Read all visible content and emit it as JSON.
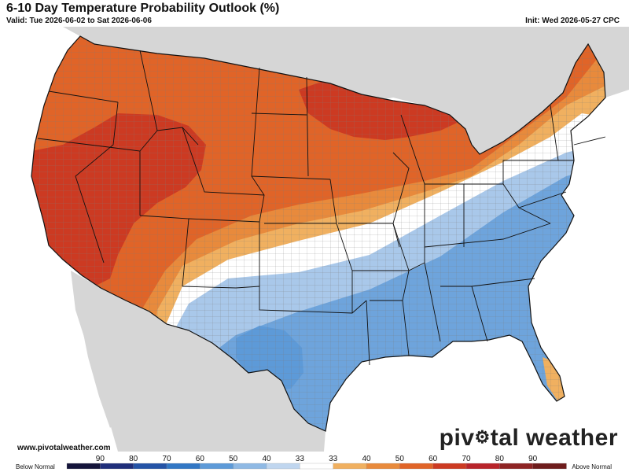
{
  "header": {
    "title": "6-10 Day Temperature Probability Outlook (%)",
    "valid": "Valid: Tue 2026-06-02 to Sat 2026-06-06",
    "init": "Init: Wed 2026-05-27 CPC"
  },
  "footer": {
    "website": "www.pivotalweather.com",
    "brand_part1": "piv",
    "brand_part2": "tal weather"
  },
  "legend": {
    "below_label": "Below Normal",
    "above_label": "Above Normal",
    "ticks": [
      "90",
      "80",
      "70",
      "60",
      "50",
      "40",
      "33",
      "33",
      "40",
      "50",
      "60",
      "70",
      "80",
      "90"
    ],
    "colors": [
      "#14143a",
      "#1f2e7a",
      "#2453a6",
      "#3277c4",
      "#5d9ad8",
      "#8fb9e4",
      "#c0d6ef",
      "#ffffff",
      "#f0b060",
      "#e88a3c",
      "#e06428",
      "#cc3a22",
      "#b8242a",
      "#8e2424",
      "#6e1c1c"
    ]
  },
  "map": {
    "colors": {
      "land_outside": "#d6d6d6",
      "water": "#ffffff",
      "near_normal": "#ffffff",
      "above_33": "#f0b060",
      "above_40": "#e88a3c",
      "above_50": "#e06428",
      "above_60": "#cc3a22",
      "below_33": "#a9c8ea",
      "below_40": "#8cb6e2",
      "below_50": "#6ea4dc",
      "border": "#111111",
      "county": "#7a7a7a"
    }
  }
}
